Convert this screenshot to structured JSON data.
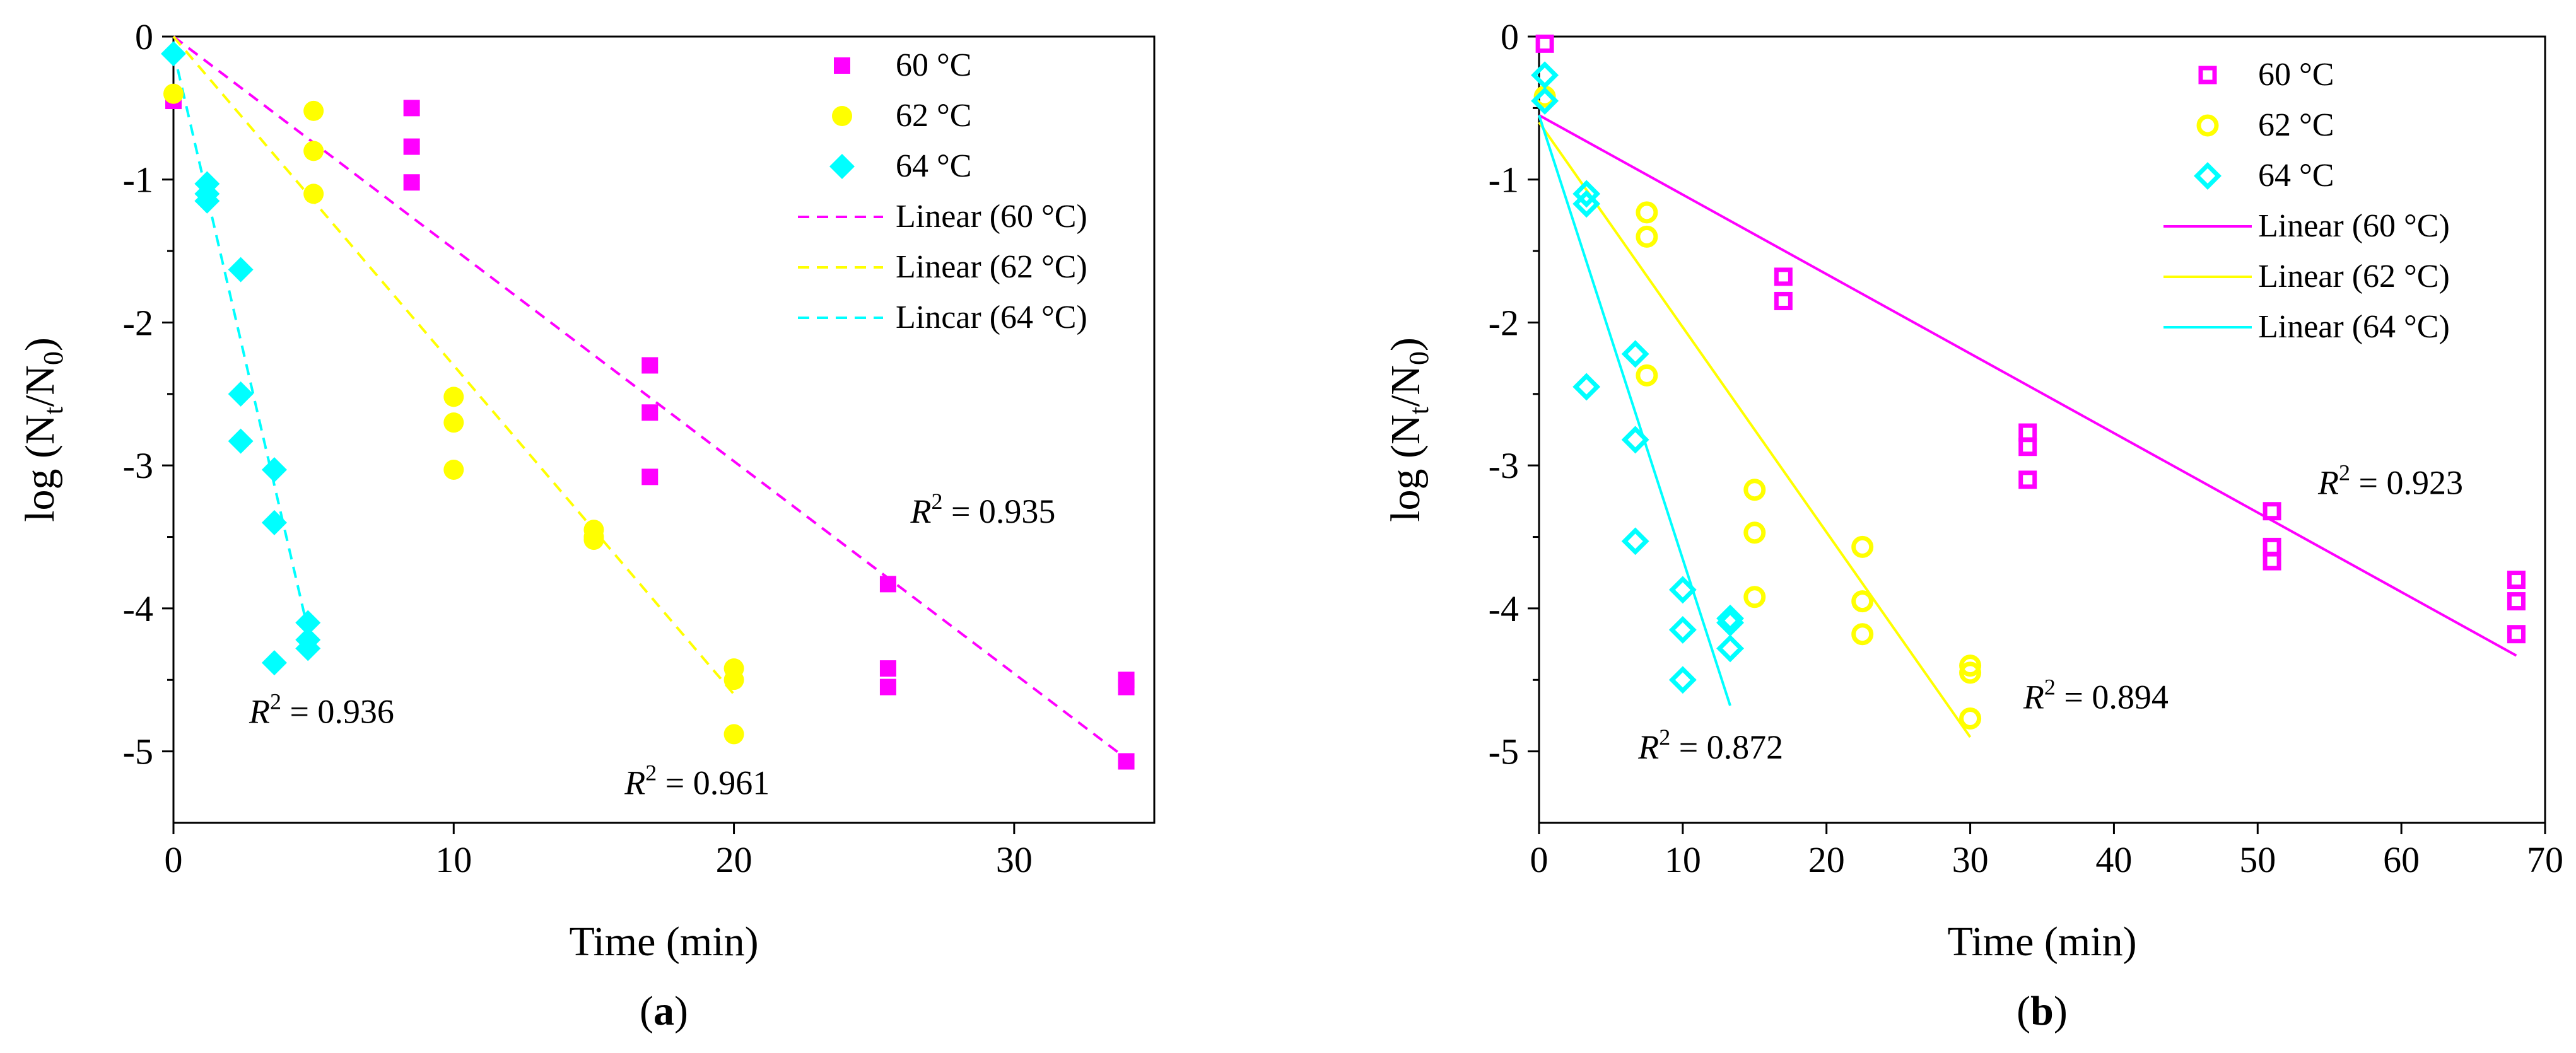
{
  "chart_data": [
    {
      "type": "scatter",
      "panel_label": "(a)",
      "xlabel": "Time (min)",
      "ylabel_main": "log (N",
      "ylabel_sub1": "t",
      "ylabel_mid": "/N",
      "ylabel_sub2": "0",
      "ylabel_end": ")",
      "xlim": [
        0,
        35
      ],
      "ylim": [
        -5.5,
        0
      ],
      "xticks": [
        "0",
        "10",
        "20",
        "30"
      ],
      "xtick_values": [
        0,
        10,
        20,
        30
      ],
      "yticks": [
        "0",
        "-1",
        "-2",
        "-3",
        "-4",
        "-5"
      ],
      "ytick_values": [
        0,
        -1,
        -2,
        -3,
        -4,
        -5
      ],
      "legend_position": "top-right",
      "series": [
        {
          "name": "60 °C",
          "marker": "square-filled",
          "color": "#ff00ff",
          "x": [
            0,
            8.5,
            8.5,
            8.5,
            17,
            17,
            17,
            25.5,
            25.5,
            25.5,
            34,
            34,
            34
          ],
          "y": [
            -0.45,
            -0.5,
            -0.77,
            -1.02,
            -2.3,
            -2.63,
            -3.08,
            -3.83,
            -4.42,
            -4.55,
            -4.5,
            -4.55,
            -5.07
          ]
        },
        {
          "name": "62 °C",
          "marker": "circle-filled",
          "color": "#ffff00",
          "x": [
            0,
            5,
            5,
            5,
            10,
            10,
            10,
            15,
            15,
            15,
            20,
            20,
            20
          ],
          "y": [
            -0.4,
            -0.52,
            -0.8,
            -1.1,
            -2.52,
            -2.7,
            -3.03,
            -3.45,
            -3.5,
            -3.52,
            -4.42,
            -4.5,
            -4.88
          ]
        },
        {
          "name": "64 °C",
          "marker": "diamond-filled",
          "color": "#00ffff",
          "x": [
            0,
            1.2,
            1.2,
            1.2,
            2.4,
            2.4,
            2.4,
            3.6,
            3.6,
            3.6,
            4.8,
            4.8,
            4.8
          ],
          "y": [
            -0.12,
            -1.03,
            -1.1,
            -1.15,
            -1.63,
            -2.5,
            -2.83,
            -3.03,
            -3.4,
            -4.38,
            -4.1,
            -4.22,
            -4.28
          ]
        }
      ],
      "fits": [
        {
          "name": "Linear (60 °C)",
          "style": "dashed",
          "color": "#ff00ff",
          "x": [
            0,
            34
          ],
          "y": [
            0,
            -5.05
          ]
        },
        {
          "name": "Linear (62 °C)",
          "style": "dashed",
          "color": "#ffff00",
          "x": [
            0,
            20
          ],
          "y": [
            0,
            -4.6
          ]
        },
        {
          "name": "Lincar (64 °C)",
          "style": "dashed",
          "color": "#00ffff",
          "x": [
            0,
            4.8
          ],
          "y": [
            -0.1,
            -4.15
          ]
        }
      ],
      "annotations": [
        {
          "prefix": "R",
          "sup": "2",
          "value": " = 0.935",
          "at": [
            26.3,
            -3.4
          ]
        },
        {
          "prefix": "R",
          "sup": "2",
          "value": " = 0.936",
          "at": [
            2.7,
            -4.8
          ]
        },
        {
          "prefix": "R",
          "sup": "2",
          "value": " = 0.961",
          "at": [
            16.1,
            -5.3
          ]
        }
      ]
    },
    {
      "type": "scatter",
      "panel_label": "(b)",
      "xlabel": "Time (min)",
      "ylabel_main": "log (N",
      "ylabel_sub1": "t",
      "ylabel_mid": "/N",
      "ylabel_sub2": "0",
      "ylabel_end": ")",
      "xlim": [
        0,
        70
      ],
      "ylim": [
        -5.5,
        0
      ],
      "xticks": [
        "0",
        "10",
        "20",
        "30",
        "40",
        "50",
        "60",
        "70"
      ],
      "xtick_values": [
        0,
        10,
        20,
        30,
        40,
        50,
        60,
        70
      ],
      "yticks": [
        "0",
        "-1",
        "-2",
        "-3",
        "-4",
        "-5"
      ],
      "ytick_values": [
        0,
        -1,
        -2,
        -3,
        -4,
        -5
      ],
      "legend_position": "top-right",
      "series": [
        {
          "name": "60 °C",
          "marker": "square-open",
          "color": "#ff00ff",
          "x": [
            0.4,
            17,
            17,
            34,
            34,
            34,
            51,
            51,
            51,
            68,
            68,
            68
          ],
          "y": [
            -0.05,
            -1.68,
            -1.85,
            -2.77,
            -2.87,
            -3.1,
            -3.32,
            -3.57,
            -3.67,
            -3.8,
            -3.95,
            -4.18
          ]
        },
        {
          "name": "62 °C",
          "marker": "circle-open",
          "color": "#ffff00",
          "x": [
            0.4,
            7.5,
            7.5,
            7.5,
            15,
            15,
            15,
            22.5,
            22.5,
            22.5,
            30,
            30,
            30
          ],
          "y": [
            -0.42,
            -1.23,
            -1.4,
            -2.37,
            -3.17,
            -3.47,
            -3.92,
            -3.57,
            -3.95,
            -4.18,
            -4.4,
            -4.45,
            -4.77
          ]
        },
        {
          "name": "64 °C",
          "marker": "diamond-open",
          "color": "#00ffff",
          "x": [
            0.4,
            0.4,
            3.3,
            3.3,
            3.3,
            6.7,
            6.7,
            6.7,
            10,
            10,
            10,
            13.3,
            13.3,
            13.3
          ],
          "y": [
            -0.27,
            -0.45,
            -1.1,
            -1.17,
            -2.45,
            -2.22,
            -2.82,
            -3.53,
            -3.87,
            -4.15,
            -4.5,
            -4.07,
            -4.1,
            -4.28
          ]
        }
      ],
      "fits": [
        {
          "name": "Linear (60 °C)",
          "style": "solid",
          "color": "#ff00ff",
          "x": [
            0,
            68
          ],
          "y": [
            -0.55,
            -4.33
          ]
        },
        {
          "name": "Linear (62 °C)",
          "style": "solid",
          "color": "#ffff00",
          "x": [
            0,
            30
          ],
          "y": [
            -0.6,
            -4.9
          ]
        },
        {
          "name": "Linear (64 °C)",
          "style": "solid",
          "color": "#00ffff",
          "x": [
            0,
            13.3
          ],
          "y": [
            -0.55,
            -4.68
          ]
        }
      ],
      "annotations": [
        {
          "prefix": "R",
          "sup": "2",
          "value": " = 0.923",
          "at": [
            54.2,
            -3.2
          ]
        },
        {
          "prefix": "R",
          "sup": "2",
          "value": " = 0.894",
          "at": [
            33.7,
            -4.7
          ]
        },
        {
          "prefix": "R",
          "sup": "2",
          "value": " = 0.872",
          "at": [
            6.9,
            -5.05
          ]
        }
      ]
    }
  ]
}
